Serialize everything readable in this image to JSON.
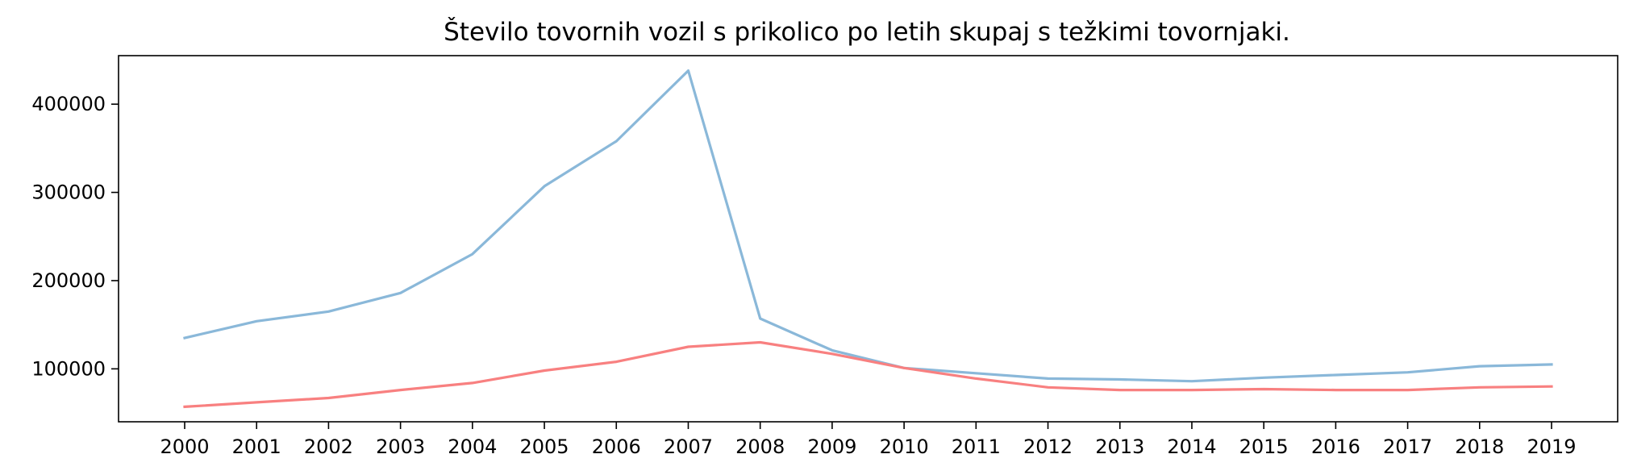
{
  "chart_data": {
    "type": "line",
    "title": "Število tovornih vozil s prikolico po letih skupaj s težkimi tovornjaki.",
    "xlabel": "",
    "ylabel": "",
    "categories": [
      "2000",
      "2001",
      "2002",
      "2003",
      "2004",
      "2005",
      "2006",
      "2007",
      "2008",
      "2009",
      "2010",
      "2011",
      "2012",
      "2013",
      "2014",
      "2015",
      "2016",
      "2017",
      "2018",
      "2019"
    ],
    "ylim": [
      40000,
      455000
    ],
    "yticks": [
      100000,
      200000,
      300000,
      400000
    ],
    "grid": false,
    "series": [
      {
        "color": "#8ab8d9",
        "values": [
          135000,
          154000,
          165000,
          186000,
          230000,
          307000,
          358000,
          438000,
          157000,
          121000,
          101000,
          95000,
          89000,
          88000,
          86000,
          90000,
          93000,
          96000,
          103000,
          105000
        ]
      },
      {
        "color": "#f88080",
        "values": [
          57000,
          62000,
          67000,
          76000,
          84000,
          98000,
          108000,
          125000,
          130000,
          117000,
          101000,
          89000,
          79000,
          76000,
          76000,
          77000,
          76000,
          76000,
          79000,
          80000
        ]
      }
    ]
  }
}
